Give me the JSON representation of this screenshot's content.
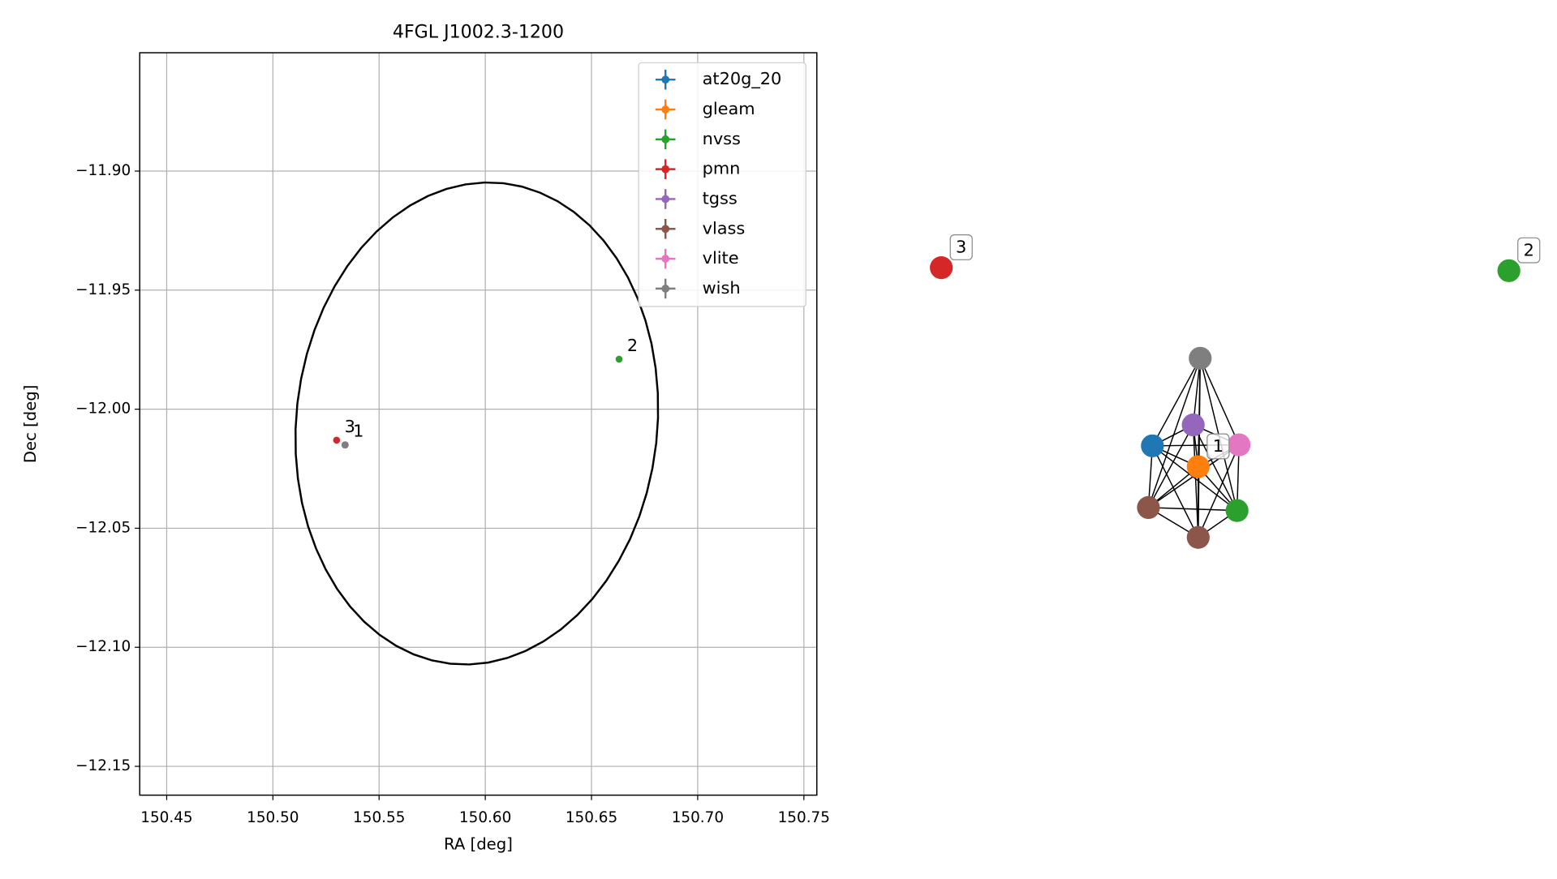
{
  "chart_data": [
    {
      "type": "scatter",
      "title": "4FGL J1002.3-1200",
      "xlabel": "RA [deg]",
      "ylabel": "Dec [deg]",
      "xlim": [
        150.4373,
        150.7561
      ],
      "ylim": [
        -12.1621,
        -11.8503
      ],
      "xticks": [
        150.45,
        {
          "value": 150.5,
          "label": "150.50"
        },
        150.55,
        {
          "value": 150.6,
          "label": "150.60"
        },
        150.65,
        {
          "value": 150.7,
          "label": "150.70"
        },
        150.75
      ],
      "yticks": [
        {
          "value": -12.15,
          "label": "−12.15"
        },
        {
          "value": -12.1,
          "label": "−12.10"
        },
        {
          "value": -12.05,
          "label": "−12.05"
        },
        {
          "value": -12.0,
          "label": "−12.00"
        },
        {
          "value": -11.95,
          "label": "−11.95"
        },
        {
          "value": -11.9,
          "label": "−11.90"
        }
      ],
      "grid": true,
      "legend": "upper right",
      "series": [
        {
          "name": "at20g_20",
          "color": "#1f77b4",
          "x": [
            150.534
          ],
          "y": [
            -12.015
          ]
        },
        {
          "name": "gleam",
          "color": "#ff7f0e",
          "x": [
            150.534
          ],
          "y": [
            -12.015
          ]
        },
        {
          "name": "nvss",
          "color": "#2ca02c",
          "x": [
            150.534,
            150.663
          ],
          "y": [
            -12.015,
            -11.979
          ]
        },
        {
          "name": "pmn",
          "color": "#d62728",
          "x": [
            150.53
          ],
          "y": [
            -12.013
          ]
        },
        {
          "name": "tgss",
          "color": "#9467bd",
          "x": [
            150.534
          ],
          "y": [
            -12.015
          ]
        },
        {
          "name": "vlass",
          "color": "#8c564b",
          "x": [
            150.534,
            150.534
          ],
          "y": [
            -12.015,
            -12.015
          ]
        },
        {
          "name": "vlite",
          "color": "#e377c2",
          "x": [
            150.534
          ],
          "y": [
            -12.015
          ]
        },
        {
          "name": "wish",
          "color": "#7f7f7f",
          "x": [
            150.534
          ],
          "y": [
            -12.015
          ]
        }
      ],
      "annotations": [
        {
          "text": "1",
          "x": 150.534,
          "y": -12.015
        },
        {
          "text": "2",
          "x": 150.663,
          "y": -11.979
        },
        {
          "text": "3",
          "x": 150.53,
          "y": -12.013
        }
      ],
      "ellipse": {
        "ra_center": 150.596,
        "dec_center": -12.006,
        "ra_radius": 0.085,
        "dec_radius": 0.1015,
        "angle": 6.3,
        "color": "#000000"
      }
    },
    {
      "type": "network",
      "nodes": [
        {
          "color": "#7f7f7f"
        },
        {
          "color": "#9467bd"
        },
        {
          "color": "#1f77b4"
        },
        {
          "color": "#e377c2"
        },
        {
          "color": "#ff7f0e",
          "label": "1"
        },
        {
          "color": "#8c564b"
        },
        {
          "color": "#2ca02c"
        },
        {
          "color": "#8c564b"
        },
        {
          "color": "#d62728",
          "label": "3"
        },
        {
          "color": "#2ca02c",
          "label": "2"
        }
      ],
      "edges": [
        [
          0,
          1
        ],
        [
          0,
          2
        ],
        [
          0,
          3
        ],
        [
          0,
          4
        ],
        [
          0,
          5
        ],
        [
          0,
          6
        ],
        [
          0,
          7
        ],
        [
          1,
          2
        ],
        [
          1,
          3
        ],
        [
          1,
          4
        ],
        [
          1,
          5
        ],
        [
          1,
          6
        ],
        [
          1,
          7
        ],
        [
          2,
          3
        ],
        [
          2,
          4
        ],
        [
          2,
          5
        ],
        [
          2,
          6
        ],
        [
          2,
          7
        ],
        [
          3,
          4
        ],
        [
          3,
          5
        ],
        [
          3,
          6
        ],
        [
          3,
          7
        ],
        [
          4,
          5
        ],
        [
          4,
          6
        ],
        [
          4,
          7
        ],
        [
          5,
          6
        ],
        [
          5,
          7
        ],
        [
          6,
          7
        ]
      ]
    }
  ]
}
